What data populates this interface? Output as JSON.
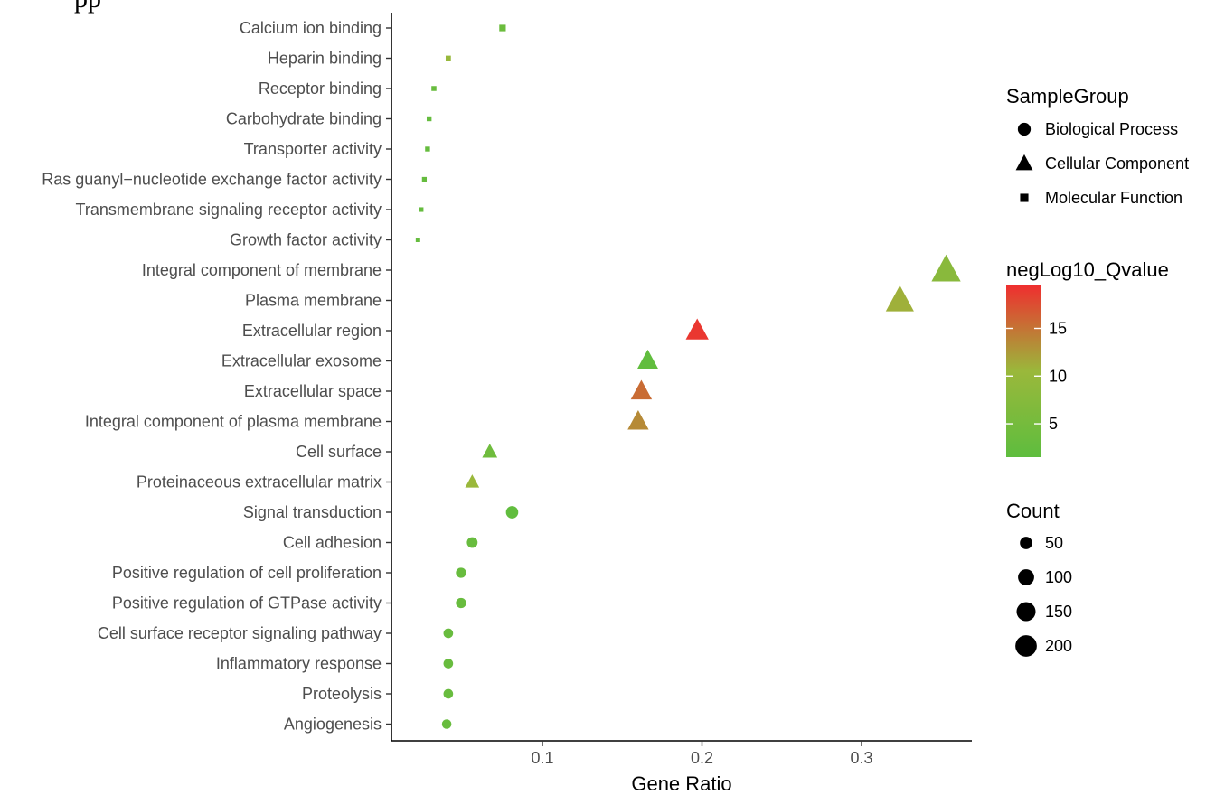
{
  "chart_data": {
    "type": "scatter",
    "title": "",
    "xlabel": "Gene Ratio",
    "ylabel": "",
    "xlim": [
      0.005,
      0.37
    ],
    "x_ticks": [
      0.1,
      0.2,
      0.3
    ],
    "x_tick_labels": [
      "0.1",
      "0.2",
      "0.3"
    ],
    "grid": false,
    "points": [
      {
        "term": "Calcium ion binding",
        "group": "Molecular Function",
        "x": 0.075,
        "qvalue": 3.5,
        "count": 30
      },
      {
        "term": "Heparin binding",
        "group": "Molecular Function",
        "x": 0.041,
        "qvalue": 10,
        "count": 15
      },
      {
        "term": "Receptor binding",
        "group": "Molecular Function",
        "x": 0.032,
        "qvalue": 3,
        "count": 13
      },
      {
        "term": "Carbohydrate binding",
        "group": "Molecular Function",
        "x": 0.029,
        "qvalue": 2.5,
        "count": 12
      },
      {
        "term": "Transporter activity",
        "group": "Molecular Function",
        "x": 0.028,
        "qvalue": 2.5,
        "count": 12
      },
      {
        "term": "Ras guanyl−nucleotide exchange factor activity",
        "group": "Molecular Function",
        "x": 0.026,
        "qvalue": 2.5,
        "count": 11
      },
      {
        "term": "Transmembrane signaling receptor activity",
        "group": "Molecular Function",
        "x": 0.024,
        "qvalue": 2.5,
        "count": 10
      },
      {
        "term": "Growth factor activity",
        "group": "Molecular Function",
        "x": 0.022,
        "qvalue": 2.5,
        "count": 9
      },
      {
        "term": "Integral component of membrane",
        "group": "Cellular Component",
        "x": 0.353,
        "qvalue": 8,
        "count": 215
      },
      {
        "term": "Plasma membrane",
        "group": "Cellular Component",
        "x": 0.324,
        "qvalue": 11,
        "count": 197
      },
      {
        "term": "Extracellular region",
        "group": "Cellular Component",
        "x": 0.197,
        "qvalue": 19,
        "count": 120
      },
      {
        "term": "Extracellular exosome",
        "group": "Cellular Component",
        "x": 0.166,
        "qvalue": 2,
        "count": 101
      },
      {
        "term": "Extracellular space",
        "group": "Cellular Component",
        "x": 0.162,
        "qvalue": 15.5,
        "count": 99
      },
      {
        "term": "Integral component of plasma membrane",
        "group": "Cellular Component",
        "x": 0.16,
        "qvalue": 13.5,
        "count": 98
      },
      {
        "term": "Cell surface",
        "group": "Cellular Component",
        "x": 0.067,
        "qvalue": 4,
        "count": 41
      },
      {
        "term": "Proteinaceous extracellular matrix",
        "group": "Cellular Component",
        "x": 0.056,
        "qvalue": 10.5,
        "count": 34
      },
      {
        "term": "Signal transduction",
        "group": "Biological Process",
        "x": 0.081,
        "qvalue": 2,
        "count": 50
      },
      {
        "term": "Cell adhesion",
        "group": "Biological Process",
        "x": 0.056,
        "qvalue": 3,
        "count": 34
      },
      {
        "term": "Positive regulation of cell proliferation",
        "group": "Biological Process",
        "x": 0.049,
        "qvalue": 3,
        "count": 30
      },
      {
        "term": "Positive regulation of GTPase activity",
        "group": "Biological Process",
        "x": 0.049,
        "qvalue": 3,
        "count": 30
      },
      {
        "term": "Cell surface receptor signaling pathway",
        "group": "Biological Process",
        "x": 0.041,
        "qvalue": 3,
        "count": 25
      },
      {
        "term": "Inflammatory response",
        "group": "Biological Process",
        "x": 0.041,
        "qvalue": 3,
        "count": 25
      },
      {
        "term": "Proteolysis",
        "group": "Biological Process",
        "x": 0.041,
        "qvalue": 3,
        "count": 25
      },
      {
        "term": "Angiogenesis",
        "group": "Biological Process",
        "x": 0.04,
        "qvalue": 3,
        "count": 24
      }
    ],
    "legend": {
      "placement": "right",
      "shape": {
        "title": "SampleGroup",
        "entries": [
          {
            "label": "Biological Process",
            "shape": "circle"
          },
          {
            "label": "Cellular Component",
            "shape": "triangle"
          },
          {
            "label": "Molecular Function",
            "shape": "square"
          }
        ]
      },
      "color": {
        "title": "negLog10_Qvalue",
        "range": [
          1.5,
          19.5
        ],
        "ticks": [
          5,
          10,
          15
        ],
        "tick_labels": [
          "5",
          "10",
          "15"
        ],
        "low_color": "#5ebd3e",
        "mid_color": "#9ab83b",
        "high_color": "#ef2f2f"
      },
      "size": {
        "title": "Count",
        "entries": [
          {
            "label": "50",
            "value": 50
          },
          {
            "label": "100",
            "value": 100
          },
          {
            "label": "150",
            "value": 150
          },
          {
            "label": "200",
            "value": 200
          }
        ]
      }
    }
  },
  "page": {
    "corner_fragment": "pp"
  }
}
